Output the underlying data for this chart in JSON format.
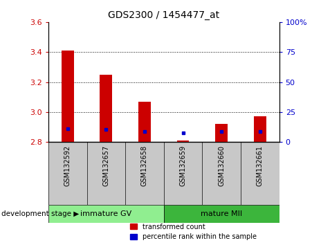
{
  "title": "GDS2300 / 1454477_at",
  "samples": [
    "GSM132592",
    "GSM132657",
    "GSM132658",
    "GSM132659",
    "GSM132660",
    "GSM132661"
  ],
  "red_bar_top": [
    3.41,
    3.25,
    3.07,
    2.81,
    2.92,
    2.97
  ],
  "red_bar_bottom": 2.8,
  "blue_marker_values": [
    2.888,
    2.885,
    2.872,
    2.862,
    2.872,
    2.872
  ],
  "ylim_left": [
    2.8,
    3.6
  ],
  "ylim_right": [
    0,
    100
  ],
  "yticks_left": [
    2.8,
    3.0,
    3.2,
    3.4,
    3.6
  ],
  "yticks_right": [
    0,
    25,
    50,
    75,
    100
  ],
  "ytick_labels_right": [
    "0",
    "25",
    "50",
    "75",
    "100%"
  ],
  "groups": [
    {
      "label": "immature GV",
      "indices": [
        0,
        1,
        2
      ],
      "color": "#90EE90"
    },
    {
      "label": "mature MII",
      "indices": [
        3,
        4,
        5
      ],
      "color": "#3CB53C"
    }
  ],
  "bar_color": "#CC0000",
  "blue_color": "#0000CC",
  "bg_plot": "#FFFFFF",
  "bg_label": "#C8C8C8",
  "tick_color_left": "#CC0000",
  "tick_color_right": "#0000CC",
  "legend_red_label": "transformed count",
  "legend_blue_label": "percentile rank within the sample",
  "xlabel_text": "development stage"
}
